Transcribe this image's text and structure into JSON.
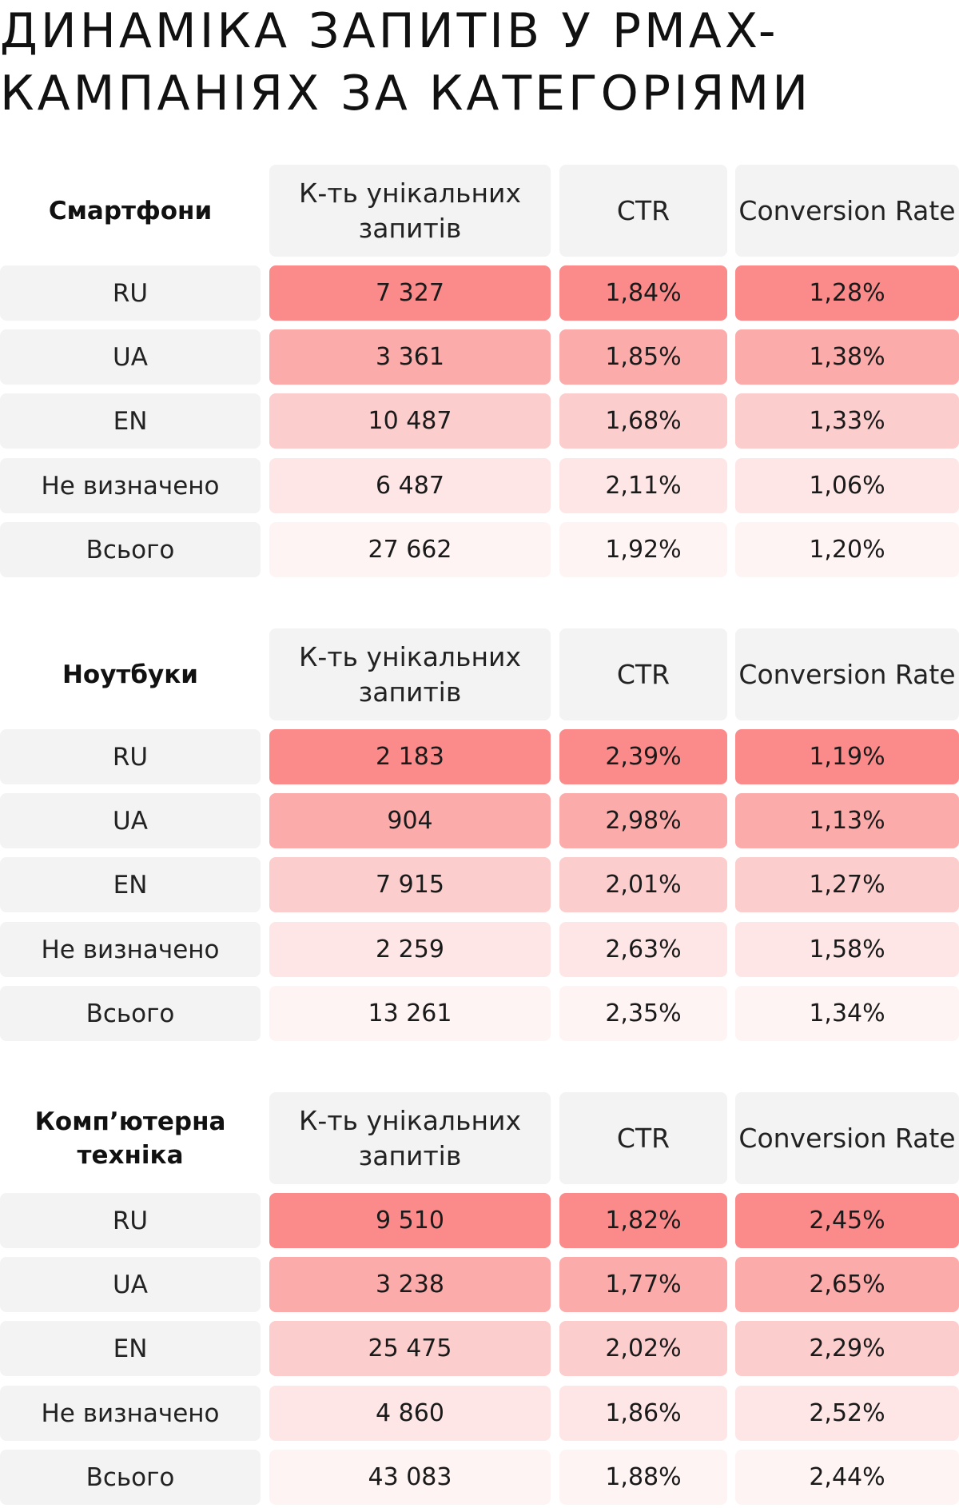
{
  "title": {
    "line1": "ДИНАМІКА ЗАПИТІВ У PMAX-",
    "line2": "КАМПАНІЯХ ЗА КАТЕГОРІЯМИ"
  },
  "headers": {
    "count": "К-ть унікальних запитів",
    "ctr": "CTR",
    "conversion": "Conversion Rate"
  },
  "colors": {
    "row_ru": "#fb8b8b",
    "row_ua": "#fcabab",
    "row_en": "#fccdcd",
    "row_undefined": "#fee6e6",
    "row_total": "#fff4f4",
    "label_bg": "#f3f3f3"
  },
  "sections": [
    {
      "category": "Смартфони",
      "rows": [
        {
          "label": "RU",
          "count": "7 327",
          "ctr": "1,84%",
          "conversion": "1,28%"
        },
        {
          "label": "UA",
          "count": "3 361",
          "ctr": "1,85%",
          "conversion": "1,38%"
        },
        {
          "label": "EN",
          "count": "10 487",
          "ctr": "1,68%",
          "conversion": "1,33%"
        },
        {
          "label": "Не визначено",
          "count": "6 487",
          "ctr": "2,11%",
          "conversion": "1,06%"
        },
        {
          "label": "Всього",
          "count": "27 662",
          "ctr": "1,92%",
          "conversion": "1,20%"
        }
      ]
    },
    {
      "category": "Ноутбуки",
      "rows": [
        {
          "label": "RU",
          "count": "2 183",
          "ctr": "2,39%",
          "conversion": "1,19%"
        },
        {
          "label": "UA",
          "count": "904",
          "ctr": "2,98%",
          "conversion": "1,13%"
        },
        {
          "label": "EN",
          "count": "7 915",
          "ctr": "2,01%",
          "conversion": "1,27%"
        },
        {
          "label": "Не визначено",
          "count": "2 259",
          "ctr": "2,63%",
          "conversion": "1,58%"
        },
        {
          "label": "Всього",
          "count": "13 261",
          "ctr": "2,35%",
          "conversion": "1,34%"
        }
      ]
    },
    {
      "category": "Комп’ютерна техніка",
      "rows": [
        {
          "label": "RU",
          "count": "9 510",
          "ctr": "1,82%",
          "conversion": "2,45%"
        },
        {
          "label": "UA",
          "count": "3 238",
          "ctr": "1,77%",
          "conversion": "2,65%"
        },
        {
          "label": "EN",
          "count": "25 475",
          "ctr": "2,02%",
          "conversion": "2,29%"
        },
        {
          "label": "Не визначено",
          "count": "4 860",
          "ctr": "1,86%",
          "conversion": "2,52%"
        },
        {
          "label": "Всього",
          "count": "43 083",
          "ctr": "1,88%",
          "conversion": "2,44%"
        }
      ]
    }
  ]
}
